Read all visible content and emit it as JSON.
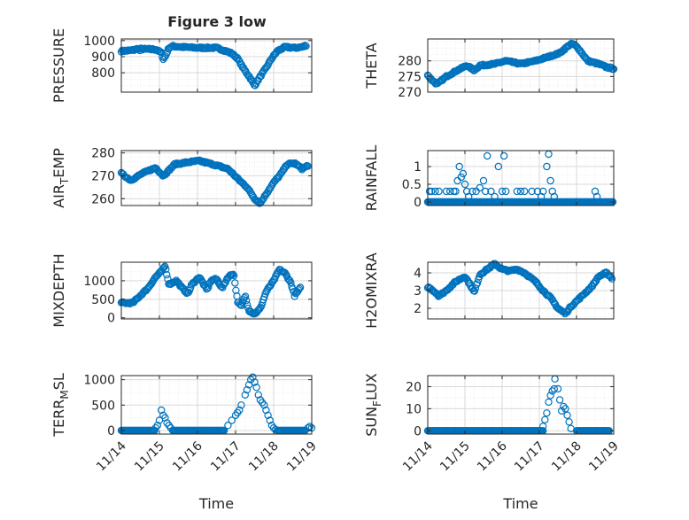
{
  "figure_title": "Figure 3 low",
  "colors": {
    "marker": "#0072BD",
    "axis": "#262626",
    "grid": "#d9d9d9",
    "minor_grid": "#ededed"
  },
  "chart_data": [
    {
      "type": "scatter",
      "id": "pressure",
      "ylabel": "PRESSURE",
      "ylim": [
        680,
        1010
      ],
      "yticks": [
        800,
        900,
        1000
      ],
      "yminor": [
        720,
        760,
        840,
        880,
        920,
        960
      ],
      "xlim": [
        0,
        5
      ],
      "xticks": [
        0,
        1,
        2,
        3,
        4,
        5
      ],
      "xticklabels": [
        "11/14",
        "11/15",
        "11/16",
        "11/17",
        "11/18",
        "11/19"
      ],
      "curve": [
        [
          0,
          935
        ],
        [
          0.3,
          940
        ],
        [
          0.45,
          950
        ],
        [
          0.5,
          935
        ],
        [
          0.5,
          948
        ],
        [
          0.9,
          945
        ],
        [
          1.05,
          925
        ],
        [
          1.1,
          885
        ],
        [
          1.15,
          900
        ],
        [
          1.25,
          955
        ],
        [
          1.35,
          965
        ],
        [
          1.6,
          960
        ],
        [
          2.0,
          955
        ],
        [
          2.5,
          955
        ],
        [
          2.8,
          930
        ],
        [
          2.9,
          920
        ],
        [
          3.05,
          890
        ],
        [
          3.2,
          830
        ],
        [
          3.35,
          780
        ],
        [
          3.5,
          720
        ],
        [
          3.6,
          760
        ],
        [
          3.8,
          830
        ],
        [
          3.95,
          890
        ],
        [
          4.1,
          935
        ],
        [
          4.3,
          960
        ],
        [
          4.55,
          955
        ],
        [
          4.75,
          960
        ],
        [
          4.85,
          970
        ]
      ],
      "n": 190
    },
    {
      "type": "scatter",
      "id": "theta",
      "ylabel": "THETA",
      "ylim": [
        270,
        287
      ],
      "yticks": [
        270,
        275,
        280
      ],
      "yminor": [
        272,
        274,
        276,
        278,
        282,
        284,
        286
      ],
      "xlim": [
        0,
        5
      ],
      "xticks": [
        0,
        1,
        2,
        3,
        4,
        5
      ],
      "xticklabels": [
        "11/14",
        "11/15",
        "11/16",
        "11/17",
        "11/18",
        "11/19"
      ],
      "curve": [
        [
          0,
          275.5
        ],
        [
          0.1,
          274
        ],
        [
          0.25,
          272.5
        ],
        [
          0.5,
          275
        ],
        [
          0.8,
          277
        ],
        [
          1.05,
          278.5
        ],
        [
          1.25,
          277
        ],
        [
          1.4,
          278.5
        ],
        [
          1.8,
          279
        ],
        [
          2.1,
          280
        ],
        [
          2.5,
          279
        ],
        [
          2.9,
          280
        ],
        [
          3.3,
          281.5
        ],
        [
          3.55,
          282.5
        ],
        [
          3.8,
          285
        ],
        [
          3.9,
          285.5
        ],
        [
          4.05,
          284
        ],
        [
          4.3,
          280
        ],
        [
          4.6,
          279
        ],
        [
          4.8,
          278
        ],
        [
          5.0,
          277.5
        ]
      ],
      "n": 190
    },
    {
      "type": "scatter",
      "id": "airtemp",
      "ylabel": "AIR_TEMP",
      "ylim": [
        257,
        281
      ],
      "yticks": [
        260,
        270,
        280
      ],
      "yminor": [
        258,
        262,
        264,
        266,
        268,
        272,
        274,
        276,
        278
      ],
      "xlim": [
        0,
        5
      ],
      "xticks": [
        0,
        1,
        2,
        3,
        4,
        5
      ],
      "xticklabels": [
        "11/14",
        "11/15",
        "11/16",
        "11/17",
        "11/18",
        "11/19"
      ],
      "curve": [
        [
          0,
          271
        ],
        [
          0.25,
          268
        ],
        [
          0.55,
          271
        ],
        [
          0.9,
          273.5
        ],
        [
          1.1,
          270
        ],
        [
          1.2,
          271.5
        ],
        [
          1.4,
          275
        ],
        [
          1.8,
          276
        ],
        [
          2.05,
          276.5
        ],
        [
          2.4,
          275
        ],
        [
          2.8,
          273
        ],
        [
          3.1,
          268
        ],
        [
          3.3,
          265
        ],
        [
          3.5,
          260
        ],
        [
          3.65,
          258
        ],
        [
          3.8,
          262
        ],
        [
          4.0,
          267
        ],
        [
          4.2,
          271
        ],
        [
          4.35,
          275
        ],
        [
          4.55,
          275.5
        ],
        [
          4.75,
          273
        ],
        [
          4.9,
          274.5
        ]
      ],
      "n": 190
    },
    {
      "type": "scatter",
      "id": "rainfall",
      "ylabel": "RAINFALL",
      "ylim": [
        -0.1,
        1.45
      ],
      "yticks": [
        0,
        0.5,
        1
      ],
      "yticklabels": [
        "0",
        "0.5",
        "1"
      ],
      "yminor": [
        0.25,
        0.75,
        1.25
      ],
      "xlim": [
        0,
        5
      ],
      "xticks": [
        0,
        1,
        2,
        3,
        4,
        5
      ],
      "xticklabels": [
        "11/14",
        "11/15",
        "11/16",
        "11/17",
        "11/18",
        "11/19"
      ],
      "baseline_ranges": [
        [
          0,
          1.1
        ],
        [
          1.1,
          2.2
        ],
        [
          2.2,
          4.0
        ],
        [
          4.0,
          5.1
        ]
      ],
      "baseline_value": 0,
      "points": [
        [
          0.05,
          0.3
        ],
        [
          0.1,
          0.3
        ],
        [
          0.2,
          0.3
        ],
        [
          0.3,
          0.3
        ],
        [
          0.5,
          0.3
        ],
        [
          0.6,
          0.3
        ],
        [
          0.7,
          0.3
        ],
        [
          0.75,
          0.3
        ],
        [
          0.8,
          0.6
        ],
        [
          0.85,
          1.0
        ],
        [
          0.9,
          0.7
        ],
        [
          0.95,
          0.8
        ],
        [
          1.0,
          0.5
        ],
        [
          1.05,
          0.3
        ],
        [
          1.1,
          0.15
        ],
        [
          1.2,
          0.3
        ],
        [
          1.3,
          0.3
        ],
        [
          1.4,
          0.4
        ],
        [
          1.5,
          0.6
        ],
        [
          1.55,
          0.3
        ],
        [
          1.6,
          1.3
        ],
        [
          1.7,
          0.3
        ],
        [
          1.8,
          0.15
        ],
        [
          1.9,
          1.0
        ],
        [
          2.0,
          0.3
        ],
        [
          2.05,
          1.3
        ],
        [
          2.1,
          0.3
        ],
        [
          2.4,
          0.3
        ],
        [
          2.5,
          0.3
        ],
        [
          2.6,
          0.3
        ],
        [
          2.8,
          0.3
        ],
        [
          2.95,
          0.3
        ],
        [
          3.05,
          0.15
        ],
        [
          3.1,
          0.3
        ],
        [
          3.2,
          1.0
        ],
        [
          3.25,
          1.35
        ],
        [
          3.3,
          0.6
        ],
        [
          3.35,
          0.3
        ],
        [
          3.4,
          0.15
        ],
        [
          4.5,
          0.3
        ],
        [
          4.55,
          0.15
        ]
      ],
      "n": 190
    },
    {
      "type": "scatter",
      "id": "mixdepth",
      "ylabel": "MIXDEPTH",
      "ylim": [
        -30,
        1500
      ],
      "yticks": [
        0,
        500,
        1000
      ],
      "yminor": [
        250,
        750,
        1250
      ],
      "xlim": [
        0,
        5
      ],
      "xticks": [
        0,
        1,
        2,
        3,
        4,
        5
      ],
      "xticklabels": [
        "11/14",
        "11/15",
        "11/16",
        "11/17",
        "11/18",
        "11/19"
      ],
      "curve": [
        [
          0,
          400
        ],
        [
          0.3,
          400
        ],
        [
          0.5,
          600
        ],
        [
          0.7,
          800
        ],
        [
          0.9,
          1100
        ],
        [
          1.05,
          1250
        ],
        [
          1.15,
          1400
        ],
        [
          1.25,
          900
        ],
        [
          1.45,
          1000
        ],
        [
          1.6,
          800
        ],
        [
          1.75,
          650
        ],
        [
          1.85,
          900
        ],
        [
          2.05,
          1100
        ],
        [
          2.25,
          750
        ],
        [
          2.35,
          1000
        ],
        [
          2.5,
          1050
        ],
        [
          2.65,
          800
        ],
        [
          2.8,
          1100
        ],
        [
          2.95,
          1200
        ],
        [
          3.05,
          450
        ],
        [
          3.15,
          300
        ],
        [
          3.25,
          600
        ],
        [
          3.35,
          200
        ],
        [
          3.5,
          100
        ],
        [
          3.65,
          250
        ],
        [
          3.8,
          700
        ],
        [
          4.0,
          1000
        ],
        [
          4.15,
          1300
        ],
        [
          4.3,
          1200
        ],
        [
          4.45,
          950
        ],
        [
          4.55,
          600
        ],
        [
          4.7,
          800
        ]
      ],
      "n": 190
    },
    {
      "type": "scatter",
      "id": "h2omixra",
      "ylabel": "H2OMIXRA",
      "ylim": [
        1.4,
        4.6
      ],
      "yticks": [
        2,
        3,
        4
      ],
      "yminor": [
        1.5,
        2.5,
        3.5,
        4.5
      ],
      "xlim": [
        0,
        5
      ],
      "xticks": [
        0,
        1,
        2,
        3,
        4,
        5
      ],
      "xticklabels": [
        "11/14",
        "11/15",
        "11/16",
        "11/17",
        "11/18",
        "11/19"
      ],
      "curve": [
        [
          0,
          3.2
        ],
        [
          0.15,
          3.0
        ],
        [
          0.3,
          2.7
        ],
        [
          0.5,
          3.0
        ],
        [
          0.75,
          3.5
        ],
        [
          1.0,
          3.8
        ],
        [
          1.15,
          3.3
        ],
        [
          1.25,
          2.9
        ],
        [
          1.4,
          3.9
        ],
        [
          1.6,
          4.2
        ],
        [
          1.8,
          4.5
        ],
        [
          2.0,
          4.2
        ],
        [
          2.2,
          4.1
        ],
        [
          2.4,
          4.2
        ],
        [
          2.6,
          4.0
        ],
        [
          2.9,
          3.5
        ],
        [
          3.1,
          3.0
        ],
        [
          3.3,
          2.6
        ],
        [
          3.5,
          2.0
        ],
        [
          3.7,
          1.7
        ],
        [
          3.85,
          2.1
        ],
        [
          4.05,
          2.5
        ],
        [
          4.2,
          2.8
        ],
        [
          4.4,
          3.2
        ],
        [
          4.6,
          3.8
        ],
        [
          4.8,
          4.0
        ],
        [
          4.95,
          3.7
        ]
      ],
      "n": 190
    },
    {
      "type": "scatter",
      "id": "terrmsl",
      "ylabel": "TERR_MSL",
      "ylim": [
        -70,
        1080
      ],
      "yticks": [
        0,
        500,
        1000
      ],
      "yminor": [
        250,
        750
      ],
      "xlim": [
        0,
        5
      ],
      "xticks": [
        0,
        1,
        2,
        3,
        4,
        5
      ],
      "xticklabels": [
        "11/14",
        "11/15",
        "11/16",
        "11/17",
        "11/18",
        "11/19"
      ],
      "baseline_ranges": [
        [
          0,
          0.9
        ],
        [
          1.35,
          2.7
        ],
        [
          4.1,
          4.85
        ]
      ],
      "baseline_value": 0,
      "points": [
        [
          0.9,
          50
        ],
        [
          0.95,
          100
        ],
        [
          1.0,
          200
        ],
        [
          1.05,
          400
        ],
        [
          1.1,
          300
        ],
        [
          1.15,
          250
        ],
        [
          1.2,
          150
        ],
        [
          1.25,
          100
        ],
        [
          1.3,
          50
        ],
        [
          2.8,
          100
        ],
        [
          2.9,
          200
        ],
        [
          3.0,
          300
        ],
        [
          3.05,
          350
        ],
        [
          3.1,
          400
        ],
        [
          3.15,
          500
        ],
        [
          3.25,
          700
        ],
        [
          3.3,
          800
        ],
        [
          3.35,
          900
        ],
        [
          3.4,
          1000
        ],
        [
          3.45,
          1050
        ],
        [
          3.5,
          950
        ],
        [
          3.55,
          850
        ],
        [
          3.6,
          700
        ],
        [
          3.65,
          600
        ],
        [
          3.7,
          550
        ],
        [
          3.75,
          500
        ],
        [
          3.8,
          400
        ],
        [
          3.85,
          300
        ],
        [
          3.9,
          200
        ],
        [
          3.95,
          100
        ],
        [
          4.0,
          50
        ],
        [
          4.05,
          20
        ],
        [
          4.9,
          50
        ],
        [
          4.95,
          80
        ],
        [
          5.0,
          50
        ]
      ],
      "n": 190
    },
    {
      "type": "scatter",
      "id": "sunflux",
      "ylabel": "SUN_FLUX",
      "ylim": [
        -1.5,
        25
      ],
      "yticks": [
        0,
        10,
        20
      ],
      "yminor": [
        5,
        15
      ],
      "xlim": [
        0,
        5
      ],
      "xticks": [
        0,
        1,
        2,
        3,
        4,
        5
      ],
      "xticklabels": [
        "11/14",
        "11/15",
        "11/16",
        "11/17",
        "11/18",
        "11/19"
      ],
      "baseline_ranges": [
        [
          0,
          3.1
        ],
        [
          4.0,
          4.9
        ]
      ],
      "baseline_value": 0,
      "points": [
        [
          3.1,
          2
        ],
        [
          3.15,
          5
        ],
        [
          3.2,
          8
        ],
        [
          3.25,
          13
        ],
        [
          3.3,
          16
        ],
        [
          3.35,
          18
        ],
        [
          3.4,
          19
        ],
        [
          3.42,
          23.5
        ],
        [
          3.5,
          19
        ],
        [
          3.55,
          14
        ],
        [
          3.6,
          9
        ],
        [
          3.65,
          11
        ],
        [
          3.7,
          10
        ],
        [
          3.75,
          7
        ],
        [
          3.8,
          4
        ],
        [
          3.85,
          1
        ]
      ],
      "n": 190
    }
  ],
  "xlabel": "Time"
}
